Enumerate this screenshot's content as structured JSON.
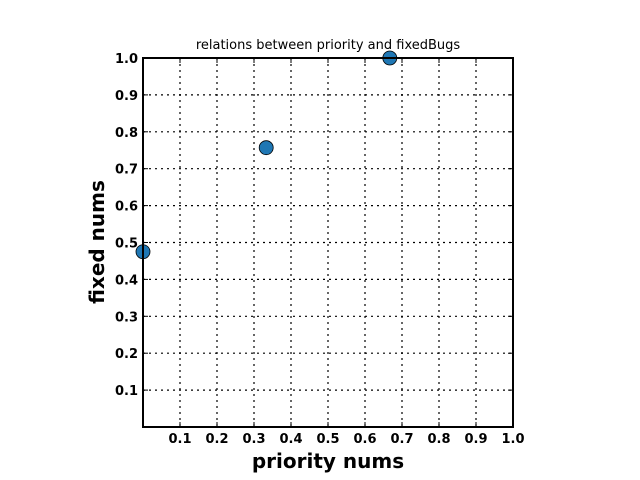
{
  "chart_data": {
    "type": "scatter",
    "title": "relations between priority and fixedBugs",
    "xlabel": "priority nums",
    "ylabel": "fixed nums",
    "xlim": [
      0,
      1.0
    ],
    "ylim": [
      0,
      1.0
    ],
    "x_ticks": [
      "0.1",
      "0.2",
      "0.3",
      "0.4",
      "0.5",
      "0.6",
      "0.7",
      "0.8",
      "0.9",
      "1.0"
    ],
    "y_ticks": [
      "0.1",
      "0.2",
      "0.3",
      "0.4",
      "0.5",
      "0.6",
      "0.7",
      "0.8",
      "0.9",
      "1.0"
    ],
    "x_tick_values": [
      0.1,
      0.2,
      0.3,
      0.4,
      0.5,
      0.6,
      0.7,
      0.8,
      0.9,
      1.0
    ],
    "y_tick_values": [
      0.1,
      0.2,
      0.3,
      0.4,
      0.5,
      0.6,
      0.7,
      0.8,
      0.9,
      1.0
    ],
    "grid": true,
    "series": [
      {
        "points": [
          {
            "x": 0.0,
            "y": 0.475
          },
          {
            "x": 0.333,
            "y": 0.757
          },
          {
            "x": 0.667,
            "y": 1.0
          }
        ],
        "color": "#1f77b4"
      }
    ]
  }
}
